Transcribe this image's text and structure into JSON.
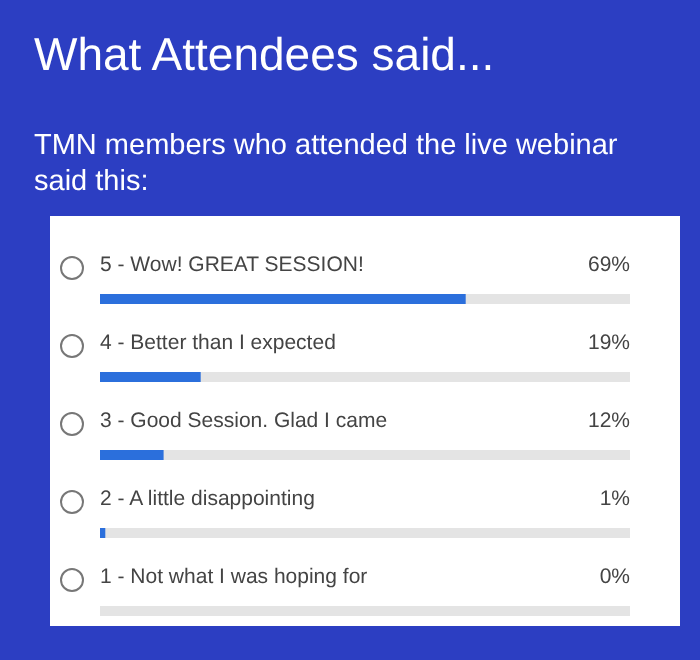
{
  "chart_data": {
    "type": "bar",
    "orientation": "horizontal",
    "title": "What Attendees said...",
    "subtitle": "TMN members who attended the live webinar said this:",
    "categories": [
      "5 - Wow! GREAT SESSION!",
      "4 - Better than I expected",
      "3 - Good Session. Glad I came",
      "2 - A little disappointing",
      "1 - Not what I was hoping for"
    ],
    "values": [
      69,
      19,
      12,
      1,
      0
    ],
    "value_labels": [
      "69%",
      "19%",
      "12%",
      "1%",
      "0%"
    ],
    "color": "#2b6fdc",
    "xlim": [
      0,
      100
    ]
  }
}
